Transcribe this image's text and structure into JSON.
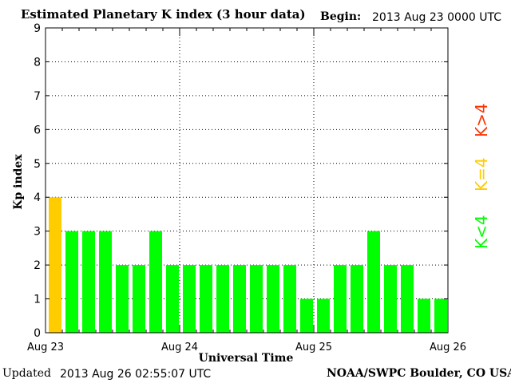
{
  "header": {
    "title": "Estimated Planetary K index (3 hour data)",
    "begin_label": "Begin:",
    "begin_value": "2013 Aug 23 0000 UTC"
  },
  "footer": {
    "updated_label": "Updated",
    "updated_value": "2013 Aug 26 02:55:07 UTC",
    "credit": "NOAA/SWPC Boulder, CO USA"
  },
  "legend": {
    "high": "K>4",
    "equal": "K=4",
    "low": "K<4"
  },
  "colors": {
    "low": "#00ff00",
    "equal": "#ffcc00",
    "high": "#ff3300",
    "frame": "#000000"
  },
  "chart_data": {
    "type": "bar",
    "xlabel": "Universal Time",
    "ylabel": "Kp index",
    "ylim": [
      0,
      9
    ],
    "yticks": [
      "0",
      "1",
      "2",
      "3",
      "4",
      "5",
      "6",
      "7",
      "8",
      "9"
    ],
    "xtick_labels": [
      "Aug 23",
      "Aug 24",
      "Aug 25",
      "Aug 26"
    ],
    "grid": true,
    "bars_per_day": 8,
    "values": [
      4,
      3,
      3,
      3,
      2,
      2,
      3,
      2,
      2,
      2,
      2,
      2,
      2,
      2,
      2,
      1,
      1,
      2,
      2,
      3,
      2,
      2,
      1,
      1
    ]
  }
}
